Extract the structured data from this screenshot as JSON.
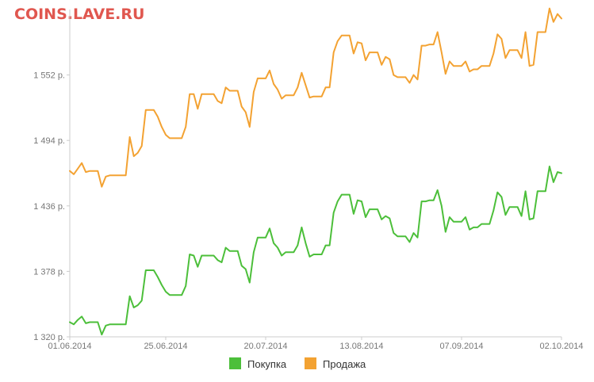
{
  "watermark": "COINS.LAVE.RU",
  "colors": {
    "buy": "#4cbf3a",
    "sell": "#f3a232",
    "axis": "#cccccc",
    "watermark": "#e0574f"
  },
  "chart_data": {
    "type": "line",
    "title": "",
    "xlabel": "",
    "ylabel": "",
    "ylim": [
      1320,
      1610
    ],
    "grid": false,
    "legend_position": "bottom-center",
    "y_ticks": [
      {
        "value": 1320,
        "label": "1 320 р."
      },
      {
        "value": 1378,
        "label": "1 378 р."
      },
      {
        "value": 1436,
        "label": "1 436 р."
      },
      {
        "value": 1494,
        "label": "1 494 р."
      },
      {
        "value": 1552,
        "label": "1 552 р."
      }
    ],
    "x_ticks": [
      {
        "index": 0,
        "label": "01.06.2014"
      },
      {
        "index": 24,
        "label": "25.06.2014"
      },
      {
        "index": 49,
        "label": "20.07.2014"
      },
      {
        "index": 73,
        "label": "13.08.2014"
      },
      {
        "index": 98,
        "label": "07.09.2014"
      },
      {
        "index": 123,
        "label": "02.10.2014"
      }
    ],
    "legend": [
      {
        "series": "buy",
        "label": "Покупка"
      },
      {
        "series": "sell",
        "label": "Продажа"
      }
    ],
    "series": [
      {
        "key": "buy",
        "name": "Покупка",
        "color": "#4cbf3a",
        "values": [
          1333,
          1331,
          1335,
          1338,
          1332,
          1333,
          1333,
          1333,
          1322,
          1330,
          1331,
          1331,
          1331,
          1331,
          1331,
          1356,
          1346,
          1348,
          1352,
          1379,
          1379,
          1379,
          1373,
          1366,
          1360,
          1357,
          1357,
          1357,
          1357,
          1365,
          1393,
          1392,
          1382,
          1392,
          1392,
          1392,
          1392,
          1388,
          1386,
          1399,
          1396,
          1396,
          1396,
          1383,
          1380,
          1368,
          1395,
          1408,
          1408,
          1408,
          1416,
          1403,
          1399,
          1392,
          1395,
          1395,
          1395,
          1401,
          1417,
          1403,
          1391,
          1393,
          1393,
          1393,
          1401,
          1401,
          1430,
          1440,
          1446,
          1446,
          1446,
          1429,
          1441,
          1440,
          1426,
          1433,
          1433,
          1433,
          1424,
          1427,
          1425,
          1412,
          1409,
          1409,
          1409,
          1404,
          1412,
          1408,
          1440,
          1440,
          1441,
          1441,
          1450,
          1436,
          1413,
          1426,
          1422,
          1422,
          1422,
          1426,
          1415,
          1417,
          1417,
          1420,
          1420,
          1420,
          1432,
          1448,
          1444,
          1428,
          1435,
          1435,
          1435,
          1427,
          1449,
          1424,
          1425,
          1449,
          1449,
          1449,
          1471,
          1457,
          1466,
          1465
        ]
      },
      {
        "key": "sell",
        "name": "Продажа",
        "color": "#f3a232",
        "values": [
          1467,
          1464,
          1469,
          1474,
          1466,
          1467,
          1467,
          1467,
          1453,
          1462,
          1463,
          1463,
          1463,
          1463,
          1463,
          1497,
          1480,
          1483,
          1489,
          1521,
          1521,
          1521,
          1515,
          1506,
          1499,
          1496,
          1496,
          1496,
          1496,
          1506,
          1535,
          1535,
          1522,
          1535,
          1535,
          1535,
          1535,
          1529,
          1527,
          1541,
          1538,
          1538,
          1538,
          1524,
          1519,
          1506,
          1537,
          1549,
          1549,
          1549,
          1556,
          1544,
          1539,
          1531,
          1534,
          1534,
          1534,
          1541,
          1554,
          1543,
          1532,
          1533,
          1533,
          1533,
          1541,
          1541,
          1572,
          1582,
          1587,
          1587,
          1587,
          1571,
          1581,
          1580,
          1565,
          1572,
          1572,
          1572,
          1561,
          1568,
          1566,
          1552,
          1550,
          1550,
          1550,
          1545,
          1552,
          1548,
          1578,
          1578,
          1579,
          1579,
          1590,
          1572,
          1553,
          1564,
          1560,
          1560,
          1560,
          1564,
          1555,
          1557,
          1557,
          1560,
          1560,
          1560,
          1571,
          1588,
          1584,
          1567,
          1574,
          1574,
          1574,
          1567,
          1590,
          1560,
          1561,
          1590,
          1590,
          1590,
          1611,
          1599,
          1606,
          1602
        ]
      }
    ]
  }
}
